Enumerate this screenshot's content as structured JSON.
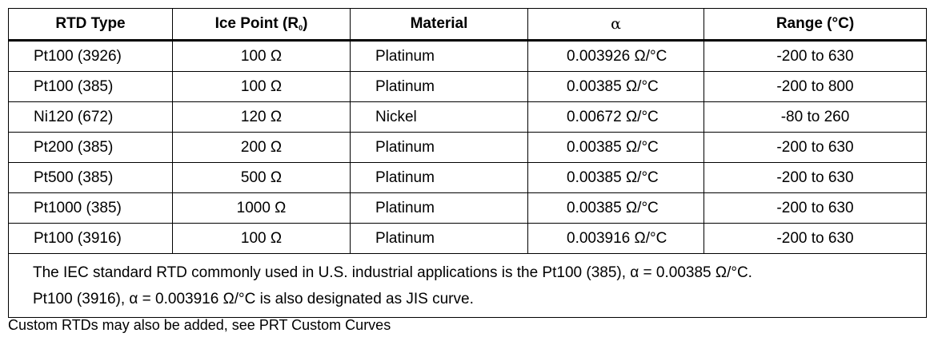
{
  "headers": {
    "type": "RTD Type",
    "ice_point": "Ice Point (R",
    "ice_point_sub": "0",
    "ice_point_close": ")",
    "material": "Material",
    "alpha": "α",
    "range": "Range (°C)"
  },
  "rows": [
    {
      "type": "Pt100 (3926)",
      "ice_point": "100 Ω",
      "material": "Platinum",
      "alpha": "0.003926 Ω/°C",
      "range": "-200 to 630"
    },
    {
      "type": "Pt100 (385)",
      "ice_point": "100 Ω",
      "material": "Platinum",
      "alpha": "0.00385 Ω/°C",
      "range": "-200 to 800"
    },
    {
      "type": "Ni120 (672)",
      "ice_point": "120 Ω",
      "material": "Nickel",
      "alpha": "0.00672 Ω/°C",
      "range": "-80 to 260"
    },
    {
      "type": "Pt200 (385)",
      "ice_point": "200 Ω",
      "material": "Platinum",
      "alpha": "0.00385 Ω/°C",
      "range": "-200 to 630"
    },
    {
      "type": "Pt500 (385)",
      "ice_point": "500 Ω",
      "material": "Platinum",
      "alpha": "0.00385 Ω/°C",
      "range": "-200 to 630"
    },
    {
      "type": "Pt1000 (385)",
      "ice_point": "1000 Ω",
      "material": "Platinum",
      "alpha": "0.00385 Ω/°C",
      "range": "-200 to 630"
    },
    {
      "type": "Pt100 (3916)",
      "ice_point": "100 Ω",
      "material": "Platinum",
      "alpha": "0.003916 Ω/°C",
      "range": "-200 to 630"
    }
  ],
  "notes": {
    "line1": "The IEC standard RTD commonly used in U.S. industrial applications is the Pt100 (385), α = 0.00385 Ω/°C.",
    "line2": "Pt100 (3916), α = 0.003916 Ω/°C is also designated as JIS curve."
  },
  "footer": "Custom RTDs may also be added, see PRT Custom Curves"
}
